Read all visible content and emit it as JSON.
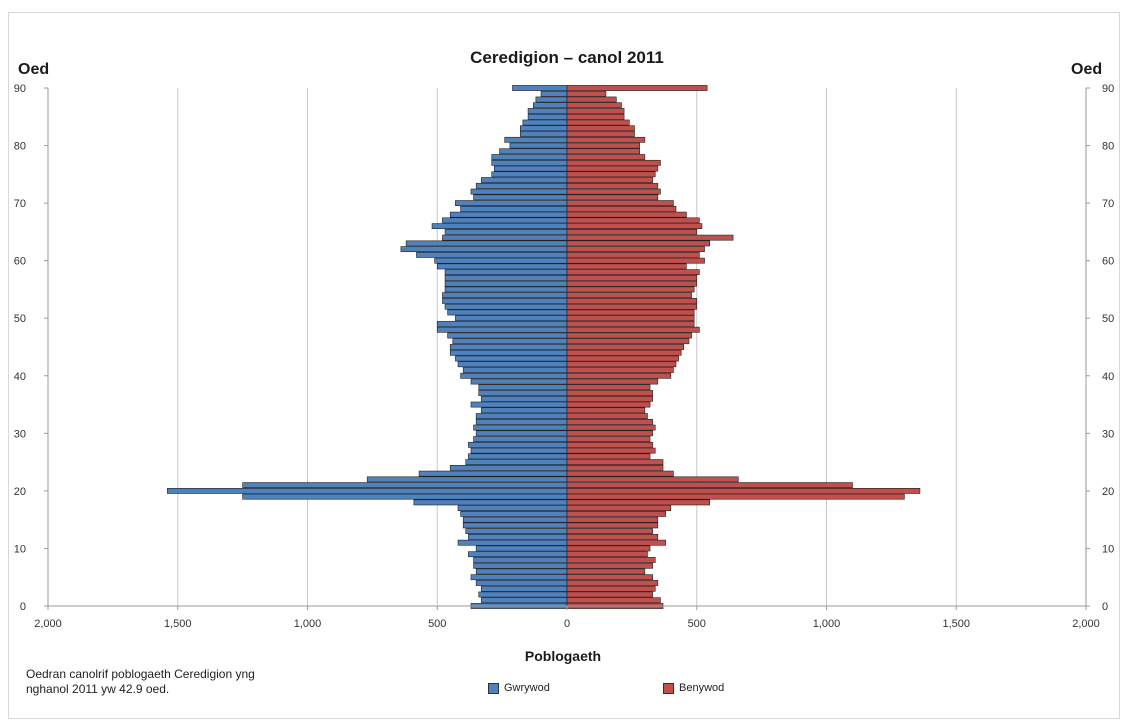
{
  "chart_data": {
    "type": "bar",
    "orientation": "horizontal-population-pyramid",
    "title": "Ceredigion – canol 2011",
    "xlabel": "Poblogaeth",
    "ylabel_left": "Oed",
    "ylabel_right": "Oed",
    "xlim": [
      -2000,
      2000
    ],
    "ylim": [
      0,
      90
    ],
    "x_tick_values": [
      -2000,
      -1500,
      -1000,
      -500,
      0,
      500,
      1000,
      1500,
      2000
    ],
    "x_tick_labels": [
      "2,000",
      "1,500",
      "1,000",
      "500",
      "0",
      "500",
      "1,000",
      "1,500",
      "2,000"
    ],
    "y_ticks": [
      0,
      10,
      20,
      30,
      40,
      50,
      60,
      70,
      80,
      90
    ],
    "grid": true,
    "legend_position": "bottom",
    "ages": [
      0,
      1,
      2,
      3,
      4,
      5,
      6,
      7,
      8,
      9,
      10,
      11,
      12,
      13,
      14,
      15,
      16,
      17,
      18,
      19,
      20,
      21,
      22,
      23,
      24,
      25,
      26,
      27,
      28,
      29,
      30,
      31,
      32,
      33,
      34,
      35,
      36,
      37,
      38,
      39,
      40,
      41,
      42,
      43,
      44,
      45,
      46,
      47,
      48,
      49,
      50,
      51,
      52,
      53,
      54,
      55,
      56,
      57,
      58,
      59,
      60,
      61,
      62,
      63,
      64,
      65,
      66,
      67,
      68,
      69,
      70,
      71,
      72,
      73,
      74,
      75,
      76,
      77,
      78,
      79,
      80,
      81,
      82,
      83,
      84,
      85,
      86,
      87,
      88,
      89,
      90
    ],
    "series": [
      {
        "name": "Gwrywod",
        "color": "#4f81bd",
        "values": [
          370,
          330,
          340,
          330,
          350,
          370,
          350,
          360,
          360,
          380,
          350,
          420,
          380,
          390,
          400,
          400,
          410,
          420,
          590,
          1250,
          1540,
          1250,
          770,
          570,
          450,
          390,
          380,
          370,
          380,
          360,
          350,
          360,
          350,
          350,
          330,
          370,
          330,
          340,
          340,
          370,
          410,
          400,
          420,
          430,
          450,
          450,
          440,
          460,
          500,
          500,
          430,
          460,
          470,
          480,
          480,
          470,
          470,
          470,
          470,
          500,
          510,
          580,
          640,
          620,
          480,
          470,
          520,
          480,
          450,
          410,
          430,
          360,
          370,
          350,
          330,
          290,
          280,
          290,
          290,
          260,
          220,
          240,
          180,
          180,
          170,
          150,
          150,
          130,
          120,
          100,
          210
        ]
      },
      {
        "name": "Benywod",
        "color": "#c0504d",
        "values": [
          370,
          360,
          330,
          340,
          350,
          330,
          300,
          330,
          340,
          310,
          320,
          380,
          350,
          330,
          350,
          350,
          380,
          400,
          550,
          1300,
          1360,
          1100,
          660,
          410,
          370,
          370,
          320,
          340,
          330,
          320,
          330,
          340,
          330,
          310,
          300,
          320,
          330,
          330,
          320,
          350,
          400,
          410,
          420,
          430,
          440,
          450,
          470,
          480,
          510,
          490,
          490,
          490,
          500,
          500,
          480,
          490,
          500,
          500,
          510,
          460,
          530,
          510,
          530,
          550,
          640,
          500,
          520,
          510,
          460,
          420,
          410,
          350,
          360,
          350,
          330,
          340,
          350,
          360,
          300,
          280,
          280,
          300,
          260,
          260,
          240,
          220,
          220,
          210,
          190,
          150,
          540
        ]
      }
    ]
  },
  "note": {
    "line1": "Oedran canolrif poblogaeth Ceredigion yng",
    "line2": "nghanol 2011 yw 42.9 oed."
  },
  "legend": {
    "male": "Gwrywod",
    "female": "Benywod"
  }
}
